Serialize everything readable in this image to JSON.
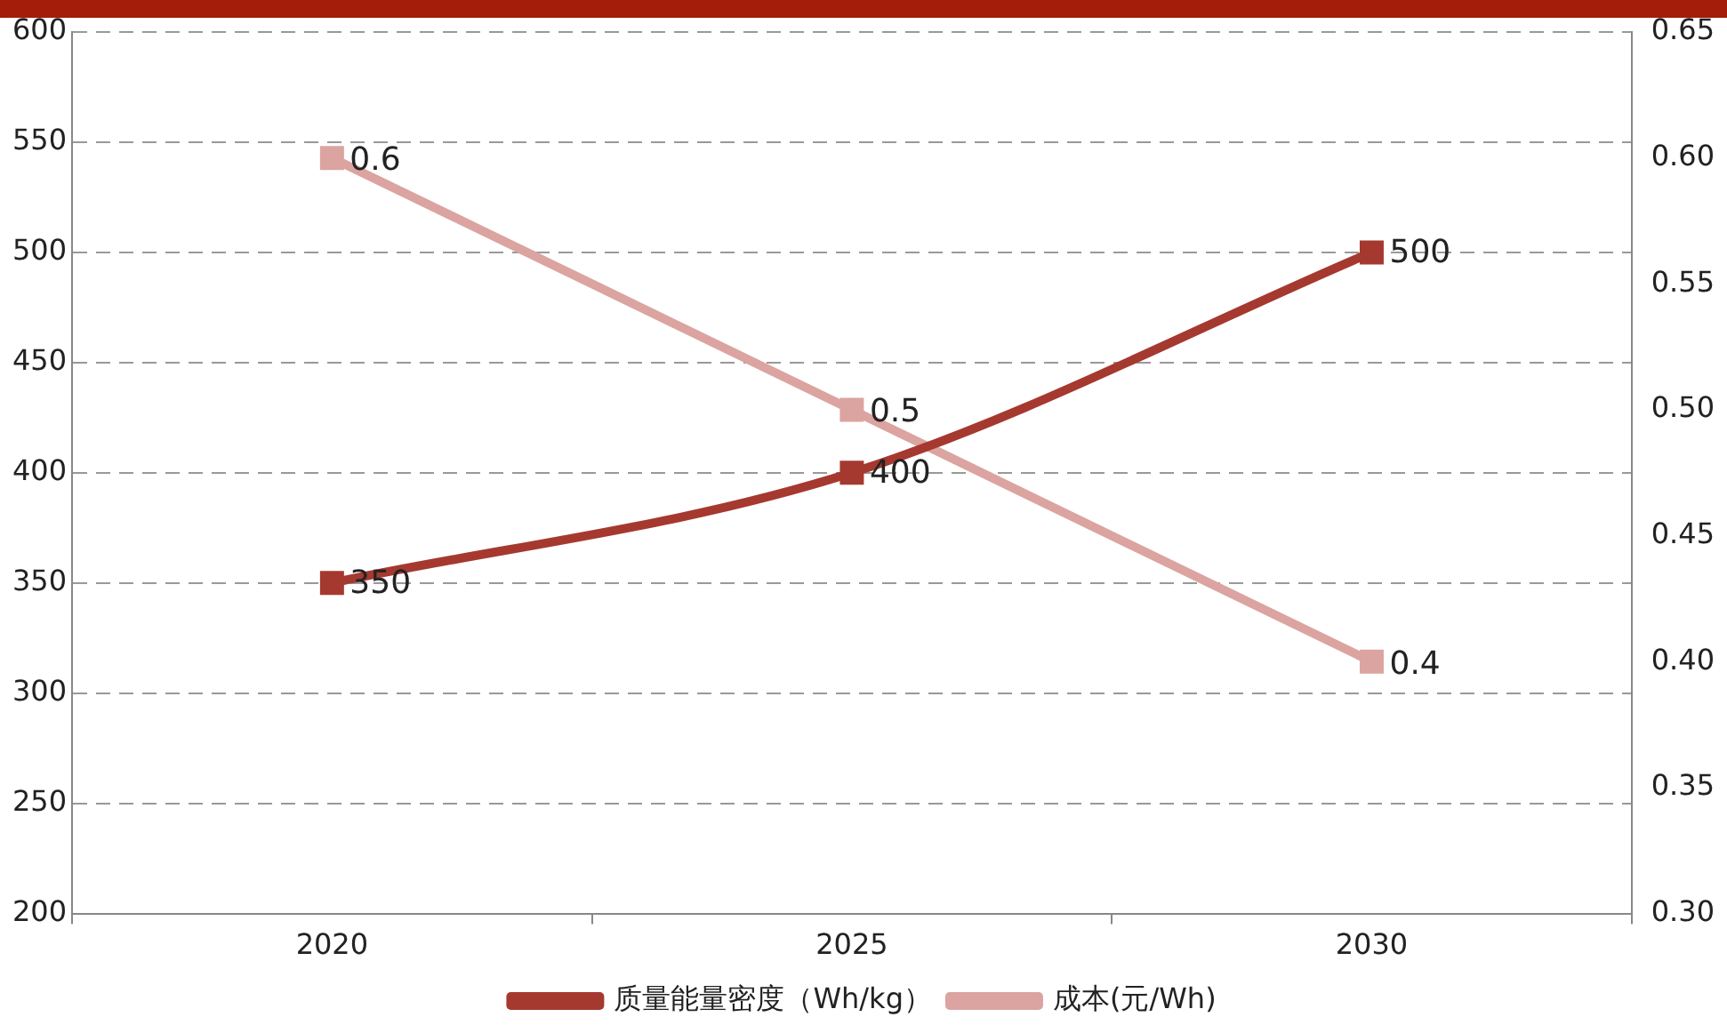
{
  "chart_data": {
    "type": "line",
    "categories": [
      "2020",
      "2025",
      "2030"
    ],
    "series": [
      {
        "name": "质量能量密度（Wh/kg）",
        "color": "#a5392f",
        "values": [
          350,
          400,
          500
        ]
      },
      {
        "name": "成本(元/Wh)",
        "color": "#dba4a0",
        "values": [
          0.6,
          0.5,
          0.4
        ],
        "axis": "y2"
      }
    ],
    "ylim": [
      200,
      600
    ],
    "yticks": [
      200,
      250,
      300,
      350,
      400,
      450,
      500,
      550,
      600
    ],
    "y2lim": [
      0.3,
      0.65
    ],
    "y2ticks": [
      {
        "value": 0.3,
        "label": "0.30"
      },
      {
        "value": 0.35,
        "label": "0.35"
      },
      {
        "value": 0.4,
        "label": "0.40"
      },
      {
        "value": 0.45,
        "label": "0.45"
      },
      {
        "value": 0.5,
        "label": "0.50"
      },
      {
        "value": 0.55,
        "label": "0.55"
      },
      {
        "value": 0.6,
        "label": "0.60"
      },
      {
        "value": 0.65,
        "label": "0.65"
      }
    ],
    "grid": "y",
    "legend": "bottom",
    "marker": "square",
    "line_style": "solid",
    "data_labels": true
  }
}
